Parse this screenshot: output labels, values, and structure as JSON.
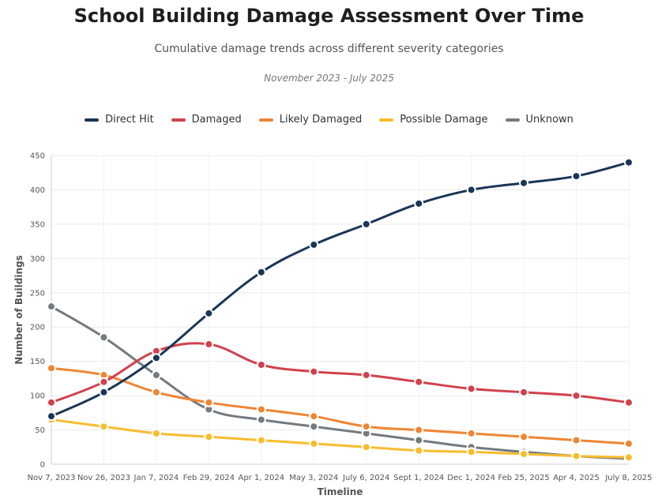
{
  "header": {
    "title": "School Building Damage Assessment Over Time",
    "subtitle": "Cumulative damage trends across different severity categories",
    "period": "November 2023 - July 2025"
  },
  "colors": {
    "direct_hit": "#1a3657",
    "damaged": "#d1414d",
    "likely_damaged": "#ef8534",
    "possible_damage": "#f7bd2e",
    "unknown": "#737a80"
  },
  "chart_data": {
    "type": "line",
    "title": "School Building Damage Assessment Over Time",
    "subtitle": "Cumulative damage trends across different severity categories",
    "xlabel": "Timeline",
    "ylabel": "Number of Buildings",
    "ylim": [
      0,
      450
    ],
    "yticks": [
      0,
      50,
      100,
      150,
      200,
      250,
      300,
      350,
      400,
      450
    ],
    "grid": true,
    "legend_position": "top-center",
    "categories": [
      "Nov 7, 2023",
      "Nov 26, 2023",
      "Jan 7, 2024",
      "Feb 29, 2024",
      "Apr 1, 2024",
      "May 3, 2024",
      "July 6, 2024",
      "Sept 1, 2024",
      "Dec 1, 2024",
      "Feb 25, 2025",
      "Apr 4, 2025",
      "July 8, 2025"
    ],
    "series": [
      {
        "name": "Direct Hit",
        "color": "#1a3657",
        "values": [
          70,
          105,
          155,
          220,
          280,
          320,
          350,
          380,
          400,
          410,
          420,
          440
        ]
      },
      {
        "name": "Damaged",
        "color": "#d1414d",
        "values": [
          90,
          120,
          165,
          175,
          145,
          135,
          130,
          120,
          110,
          105,
          100,
          90
        ]
      },
      {
        "name": "Likely Damaged",
        "color": "#ef8534",
        "values": [
          140,
          130,
          105,
          90,
          80,
          70,
          55,
          50,
          45,
          40,
          35,
          30
        ]
      },
      {
        "name": "Possible Damage",
        "color": "#f7bd2e",
        "values": [
          65,
          55,
          45,
          40,
          35,
          30,
          25,
          20,
          18,
          15,
          12,
          10
        ]
      },
      {
        "name": "Unknown",
        "color": "#737a80",
        "values": [
          230,
          185,
          130,
          80,
          65,
          55,
          45,
          35,
          25,
          18,
          12,
          8
        ]
      }
    ]
  }
}
